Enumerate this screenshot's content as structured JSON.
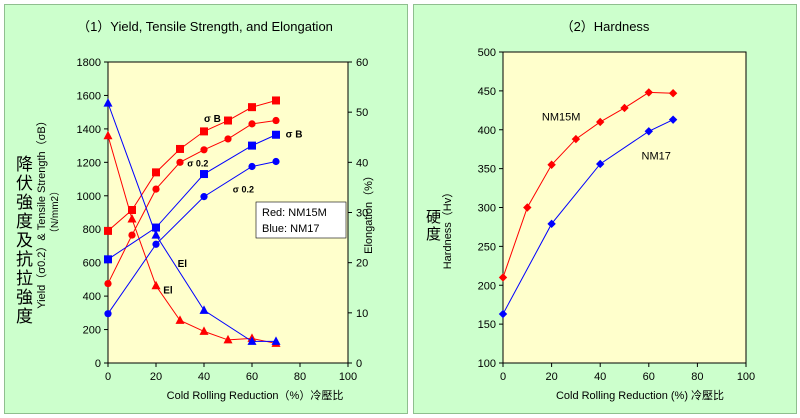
{
  "chart_data": [
    {
      "type": "line",
      "title": "（1）Yield, Tensile Strength, and Elongation",
      "xlabel": "Cold Rolling Reduction（%）冷壓比",
      "ylabel_left_main": "Yield（σ0.2）& Tensile Strength（σB）",
      "ylabel_left_unit": "（N/mm2）",
      "ylabel_left_cjk": "降伏強度及抗拉強度",
      "ylabel_right": "Elongation（%）",
      "xlim": [
        0,
        100
      ],
      "xticks": [
        "0",
        "20",
        "40",
        "60",
        "80",
        "100"
      ],
      "ylim": [
        0,
        1800
      ],
      "yticks": [
        "0",
        "200",
        "400",
        "600",
        "800",
        "1000",
        "1200",
        "1400",
        "1600",
        "1800"
      ],
      "y2lim": [
        0,
        60
      ],
      "y2ticks": [
        "0",
        "10",
        "20",
        "30",
        "40",
        "50",
        "60"
      ],
      "grid": false,
      "legend": {
        "lines": [
          "Red: NM15M",
          "Blue: NM17"
        ]
      },
      "series": [
        {
          "color": "#ff0000",
          "marker": "square",
          "axis": "left",
          "label": "σ B",
          "x": [
            0,
            10,
            20,
            30,
            40,
            50,
            60,
            70
          ],
          "y": [
            790,
            915,
            1140,
            1280,
            1385,
            1450,
            1530,
            1570
          ]
        },
        {
          "color": "#ff0000",
          "marker": "circle",
          "axis": "left",
          "label": "σ 0.2",
          "x": [
            0,
            10,
            20,
            30,
            40,
            50,
            60,
            70
          ],
          "y": [
            475,
            765,
            1040,
            1200,
            1275,
            1340,
            1430,
            1450
          ]
        },
        {
          "color": "#ff0000",
          "marker": "triangle",
          "axis": "right",
          "label": "El",
          "x": [
            0,
            10,
            20,
            30,
            40,
            50,
            60,
            70
          ],
          "y": [
            45.3,
            28.7,
            15.4,
            8.5,
            6.3,
            4.6,
            4.9,
            3.9
          ]
        },
        {
          "color": "#0000ff",
          "marker": "square",
          "axis": "left",
          "label": "σ B",
          "x": [
            0,
            20,
            40,
            60,
            70
          ],
          "y": [
            620,
            810,
            1130,
            1300,
            1365
          ]
        },
        {
          "color": "#0000ff",
          "marker": "circle",
          "axis": "left",
          "label": "σ 0.2",
          "x": [
            0,
            20,
            40,
            60,
            70
          ],
          "y": [
            295,
            710,
            995,
            1175,
            1205
          ]
        },
        {
          "color": "#0000ff",
          "marker": "triangle",
          "axis": "right",
          "label": "El",
          "x": [
            0,
            20,
            40,
            60,
            70
          ],
          "y": [
            51.8,
            25.5,
            10.5,
            4.3,
            4.3
          ]
        }
      ]
    },
    {
      "type": "line",
      "title": "（2）Hardness",
      "xlabel": "Cold Rolling Reduction (%) 冷壓比",
      "ylabel": "Hardness（Hv）",
      "ylabel_cjk": "硬度",
      "xlim": [
        0,
        100
      ],
      "xticks": [
        "0",
        "20",
        "40",
        "60",
        "80",
        "100"
      ],
      "ylim": [
        100,
        500
      ],
      "yticks": [
        "100",
        "150",
        "200",
        "250",
        "300",
        "350",
        "400",
        "450",
        "500"
      ],
      "grid": false,
      "series": [
        {
          "name": "NM15M",
          "color": "#ff0000",
          "marker": "diamond",
          "x": [
            0,
            10,
            20,
            30,
            40,
            50,
            60,
            70
          ],
          "y": [
            210,
            300,
            355,
            388,
            410,
            428,
            448,
            447
          ]
        },
        {
          "name": "NM17",
          "color": "#0000ff",
          "marker": "diamond",
          "x": [
            0,
            20,
            40,
            60,
            70
          ],
          "y": [
            163,
            279,
            356,
            398,
            413
          ]
        }
      ]
    }
  ]
}
